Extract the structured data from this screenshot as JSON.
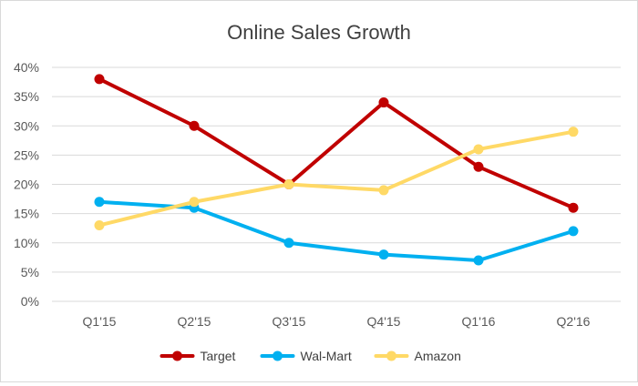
{
  "chart_data": {
    "type": "line",
    "title": "Online Sales Growth",
    "xlabel": "",
    "ylabel": "",
    "categories": [
      "Q1'15",
      "Q2'15",
      "Q3'15",
      "Q4'15",
      "Q1'16",
      "Q2'16"
    ],
    "ylim": [
      0,
      40
    ],
    "yticks": [
      "0%",
      "5%",
      "10%",
      "15%",
      "20%",
      "25%",
      "30%",
      "35%",
      "40%"
    ],
    "grid": true,
    "legend_position": "bottom",
    "series": [
      {
        "name": "Target",
        "color": "#c00000",
        "values": [
          38,
          30,
          20,
          34,
          23,
          16
        ]
      },
      {
        "name": "Wal-Mart",
        "color": "#00b0f0",
        "values": [
          17,
          16,
          10,
          8,
          7,
          12
        ]
      },
      {
        "name": "Amazon",
        "color": "#ffd966",
        "values": [
          13,
          17,
          20,
          19,
          26,
          29
        ]
      }
    ]
  }
}
